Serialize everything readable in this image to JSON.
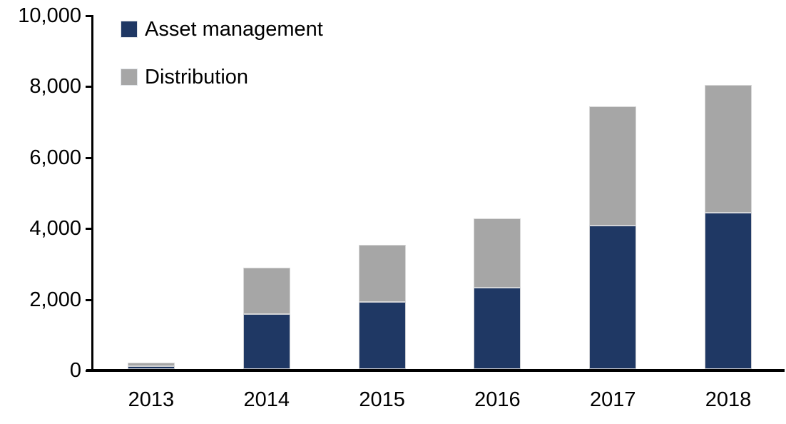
{
  "chart_data": {
    "type": "bar",
    "stacked": true,
    "title": "",
    "xlabel": "",
    "ylabel": "",
    "categories": [
      "2013",
      "2014",
      "2015",
      "2016",
      "2017",
      "2018"
    ],
    "series": [
      {
        "name": "Asset management",
        "color": "#1F3864",
        "values": [
          75,
          1550,
          1900,
          2300,
          4050,
          4400
        ]
      },
      {
        "name": "Distribution",
        "color": "#A6A6A6",
        "values": [
          110,
          1300,
          1600,
          1950,
          3350,
          3600
        ]
      }
    ],
    "totals": [
      185,
      2850,
      3500,
      4250,
      7400,
      8000
    ],
    "ylim": [
      0,
      10000
    ],
    "yticks": [
      0,
      2000,
      4000,
      6000,
      8000,
      10000
    ],
    "ytick_labels": [
      "0",
      "2,000",
      "4,000",
      "6,000",
      "8,000",
      "10,000"
    ],
    "legend_position": "top-left",
    "grid": false,
    "axis_color": "#000000",
    "background_color": "#FFFFFF"
  }
}
